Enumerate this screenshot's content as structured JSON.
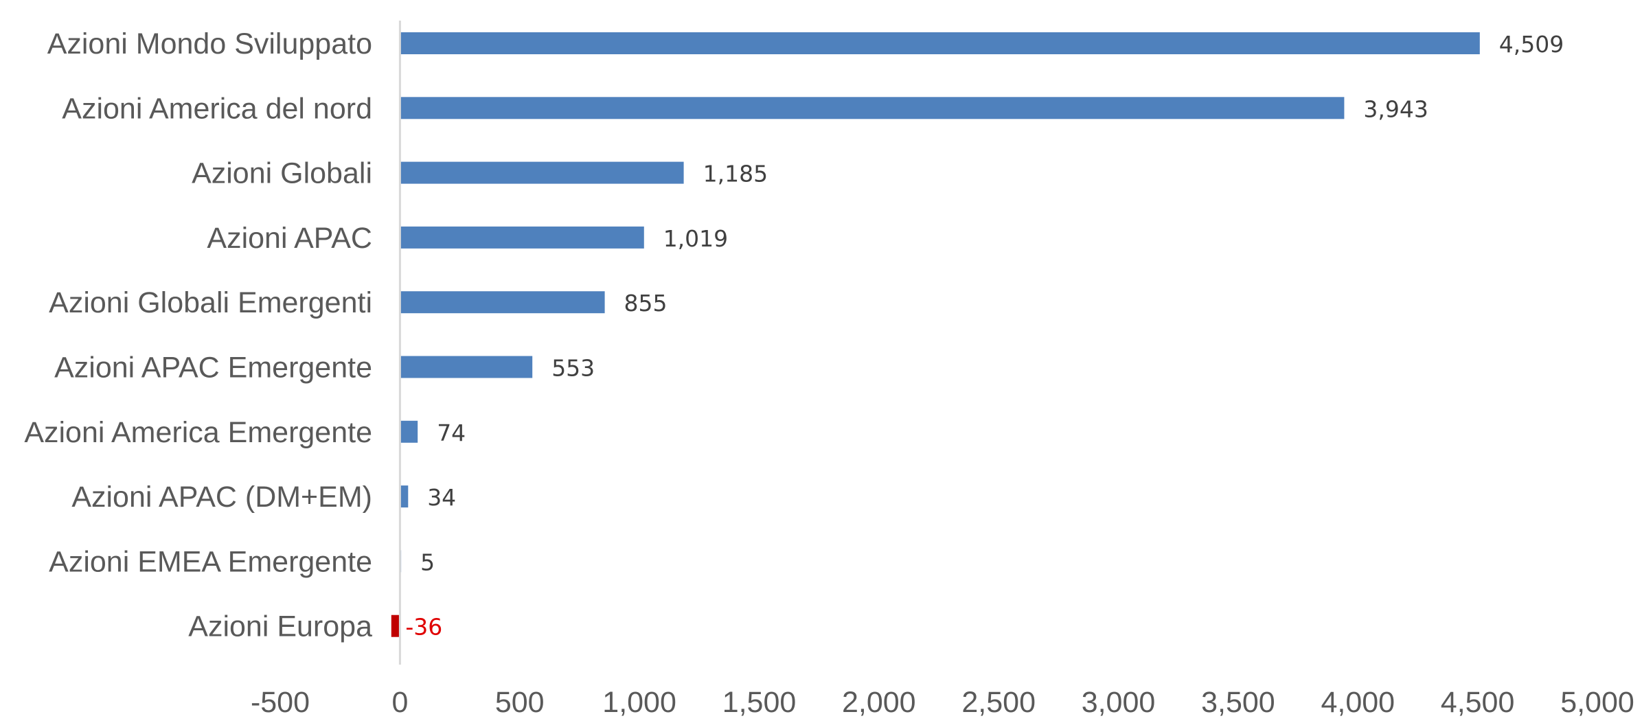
{
  "chart_data": {
    "type": "bar",
    "orientation": "horizontal",
    "categories": [
      "Azioni Mondo Sviluppato",
      "Azioni America del nord",
      "Azioni Globali",
      "Azioni APAC",
      "Azioni Globali Emergenti",
      "Azioni APAC Emergente",
      "Azioni America Emergente",
      "Azioni APAC (DM+EM)",
      "Azioni EMEA Emergente",
      "Azioni Europa"
    ],
    "values": [
      4509,
      3943,
      1185,
      1019,
      855,
      553,
      74,
      34,
      5,
      -36
    ],
    "data_labels": [
      "4,509",
      "3,943",
      "1,185",
      "1,019",
      "855",
      "553",
      "74",
      "34",
      "5",
      "-36"
    ],
    "xlim": [
      -500,
      5000
    ],
    "x_ticks": [
      -500,
      0,
      500,
      1000,
      1500,
      2000,
      2500,
      3000,
      3500,
      4000,
      4500,
      5000
    ],
    "x_tick_labels": [
      "-500",
      "0",
      "500",
      "1,000",
      "1,500",
      "2,000",
      "2,500",
      "3,000",
      "3,500",
      "4,000",
      "4,500",
      "5,000"
    ],
    "grid": false,
    "legend": "none",
    "colors": {
      "positive": "#4f81bd",
      "negative": "#c00000",
      "negative_label": "#e00000",
      "axis": "#d9d9d9"
    }
  }
}
